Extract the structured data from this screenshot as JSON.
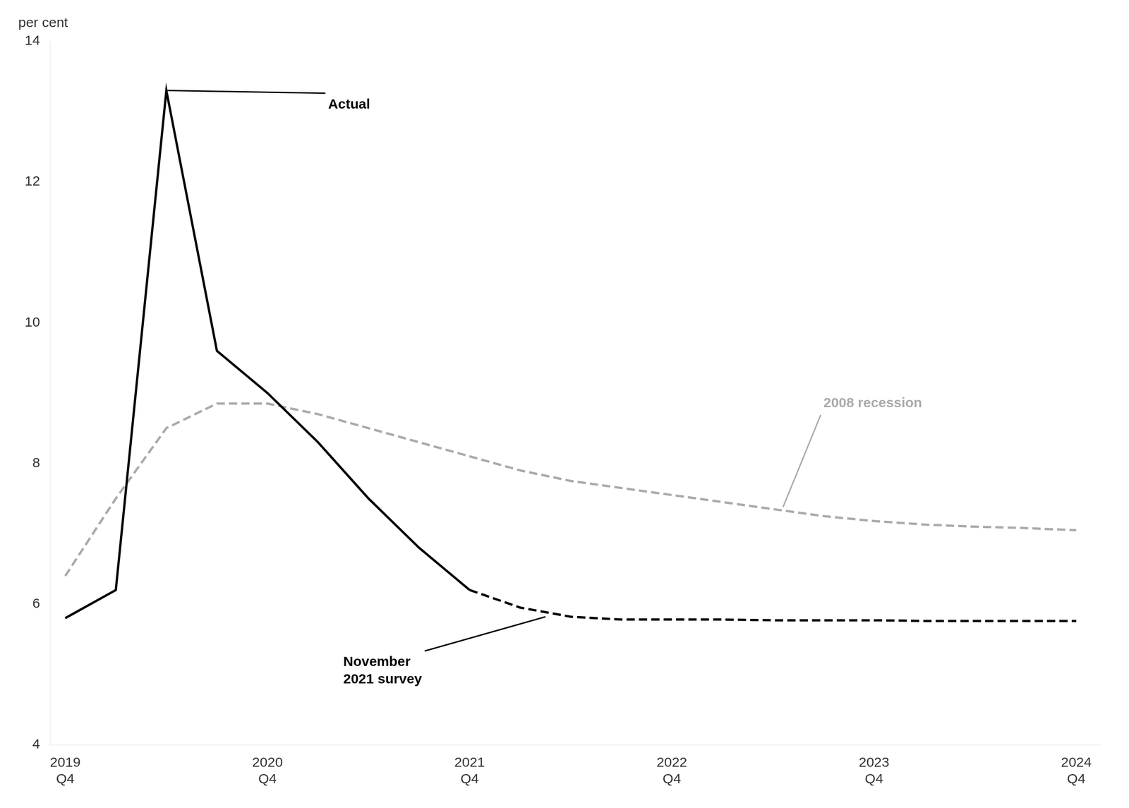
{
  "chart_data": {
    "type": "line",
    "ylabel": "per cent",
    "xlim": [
      -0.3,
      20.5
    ],
    "xticks": [
      {
        "value": 0,
        "label": "2019\nQ4"
      },
      {
        "value": 4,
        "label": "2020\nQ4"
      },
      {
        "value": 8,
        "label": "2021\nQ4"
      },
      {
        "value": 12,
        "label": "2022\nQ4"
      },
      {
        "value": 16,
        "label": "2023\nQ4"
      },
      {
        "value": 20,
        "label": "2024\nQ4"
      }
    ],
    "ylim": [
      4,
      14
    ],
    "yticks": [
      4,
      6,
      8,
      10,
      12,
      14
    ],
    "grid": false,
    "series": [
      {
        "x": [
          0,
          1,
          2,
          3,
          4,
          5,
          6,
          7,
          8,
          9,
          10,
          11,
          12,
          13,
          14,
          15,
          16,
          17,
          18,
          19,
          20
        ],
        "values": [
          6.4,
          7.5,
          8.5,
          8.85,
          8.85,
          8.7,
          8.5,
          8.3,
          8.1,
          7.9,
          7.75,
          7.65,
          7.55,
          7.45,
          7.35,
          7.25,
          7.18,
          7.13,
          7.1,
          7.08,
          7.05
        ],
        "color": "#aaaaaa",
        "line_style": "dashed"
      },
      {
        "x": [
          0,
          1,
          2,
          3,
          4,
          5,
          6,
          7,
          8
        ],
        "values": [
          5.8,
          6.2,
          13.3,
          9.6,
          9.0,
          8.3,
          7.5,
          6.8,
          6.2
        ],
        "color": "#000000",
        "line_style": "solid"
      },
      {
        "x": [
          8,
          9,
          10,
          11,
          12,
          13,
          14,
          15,
          16,
          17,
          18,
          19,
          20
        ],
        "values": [
          6.2,
          5.95,
          5.82,
          5.78,
          5.78,
          5.78,
          5.77,
          5.77,
          5.77,
          5.76,
          5.76,
          5.76,
          5.76
        ],
        "color": "#000000",
        "line_style": "dashed"
      }
    ],
    "annotations": [
      {
        "text": "Actual",
        "x": 2,
        "y": 13.3,
        "text_x": 5.2,
        "text_y": 13.1,
        "color": "#000000"
      },
      {
        "text": "2008 recession",
        "x": 14.2,
        "y": 7.38,
        "text_x": 15.0,
        "text_y": 8.85,
        "color": "#aaaaaa"
      },
      {
        "text": "November\n2021 survey",
        "x": 9.5,
        "y": 5.82,
        "text_x": 5.5,
        "text_y": 5.05,
        "color": "#000000"
      }
    ]
  }
}
